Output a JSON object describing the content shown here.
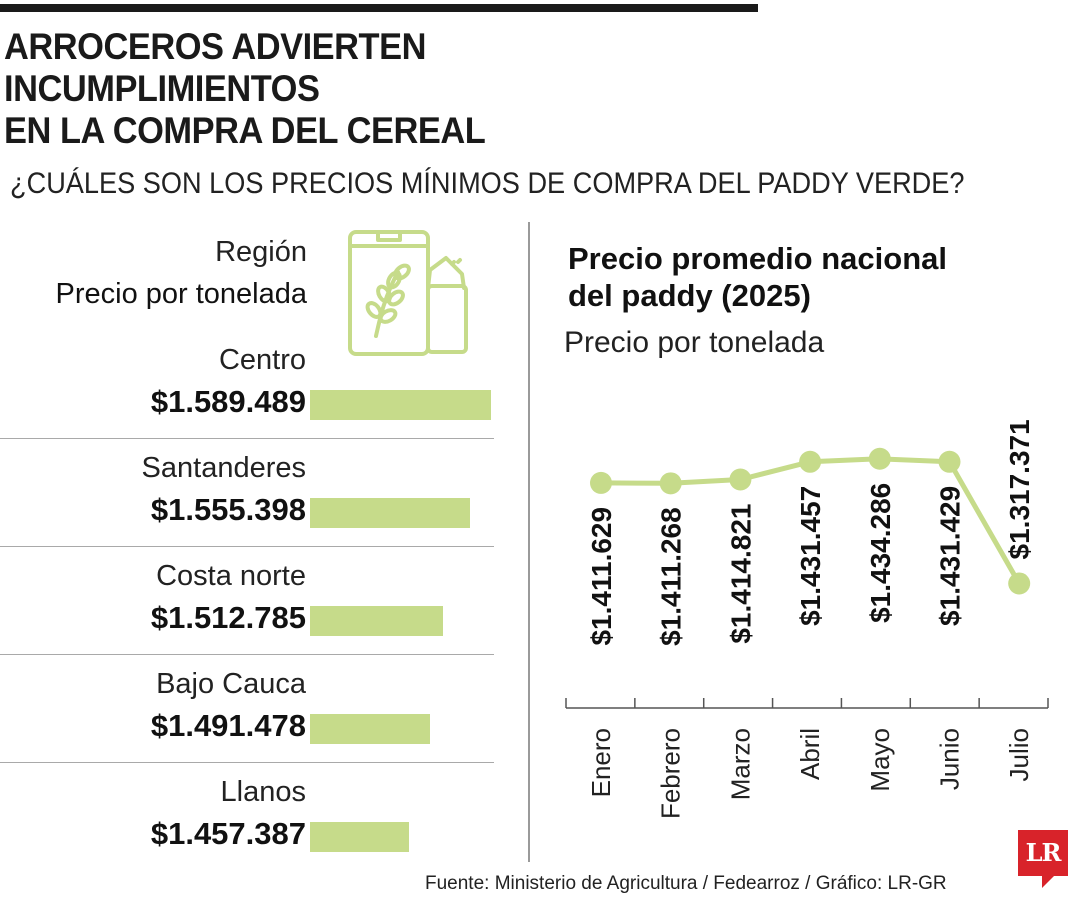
{
  "headline": "ARROCEROS ADVIERTEN INCUMPLIMIENTOS EN LA COMPRA DEL CEREAL",
  "headline_line1": "ARROCEROS ADVIERTEN INCUMPLIMIENTOS",
  "headline_line2": "EN LA COMPRA DEL CEREAL",
  "subtitle": "¿CUÁLES SON LOS PRECIOS MÍNIMOS DE COMPRA DEL PADDY VERDE?",
  "left_panel": {
    "header_region": "Región",
    "header_price": "Precio por tonelada",
    "icon": "rice-bag-icon"
  },
  "right_panel": {
    "title_line1": "Precio promedio nacional",
    "title_line2": "del paddy (2025)",
    "subtitle": "Precio por tonelada"
  },
  "source": "Fuente: Ministerio de Agricultura / Fedearroz / Gráfico: LR-GR",
  "logo_text": "LR",
  "colors": {
    "bar": "#c6db8a",
    "line": "#c6db8a",
    "text": "#1a1a1a",
    "logo": "#d8232a"
  },
  "chart_data": [
    {
      "type": "bar",
      "orientation": "horizontal",
      "title": "",
      "categories": [
        "Centro",
        "Santanderes",
        "Costa norte",
        "Bajo Cauca",
        "Llanos"
      ],
      "values": [
        1589489,
        1555398,
        1512785,
        1491478,
        1457387
      ],
      "value_labels": [
        "$1.589.489",
        "$1.555.398",
        "$1.512.785",
        "$1.491.478",
        "$1.457.387"
      ],
      "xlim": [
        1300000,
        1600000
      ]
    },
    {
      "type": "line",
      "title": "Precio promedio nacional del paddy (2025)",
      "ylabel": "Precio por tonelada",
      "categories": [
        "Enero",
        "Febrero",
        "Marzo",
        "Abril",
        "Mayo",
        "Junio",
        "Julio"
      ],
      "values": [
        1411629,
        1411268,
        1414821,
        1431457,
        1434286,
        1431429,
        1317371
      ],
      "value_labels": [
        "$1.411.629",
        "$1.411.268",
        "$1.414.821",
        "$1.431.457",
        "$1.434.286",
        "$1.431.429",
        "$1.317.371"
      ],
      "ylim": [
        1300000,
        1450000
      ],
      "grid": false
    }
  ]
}
